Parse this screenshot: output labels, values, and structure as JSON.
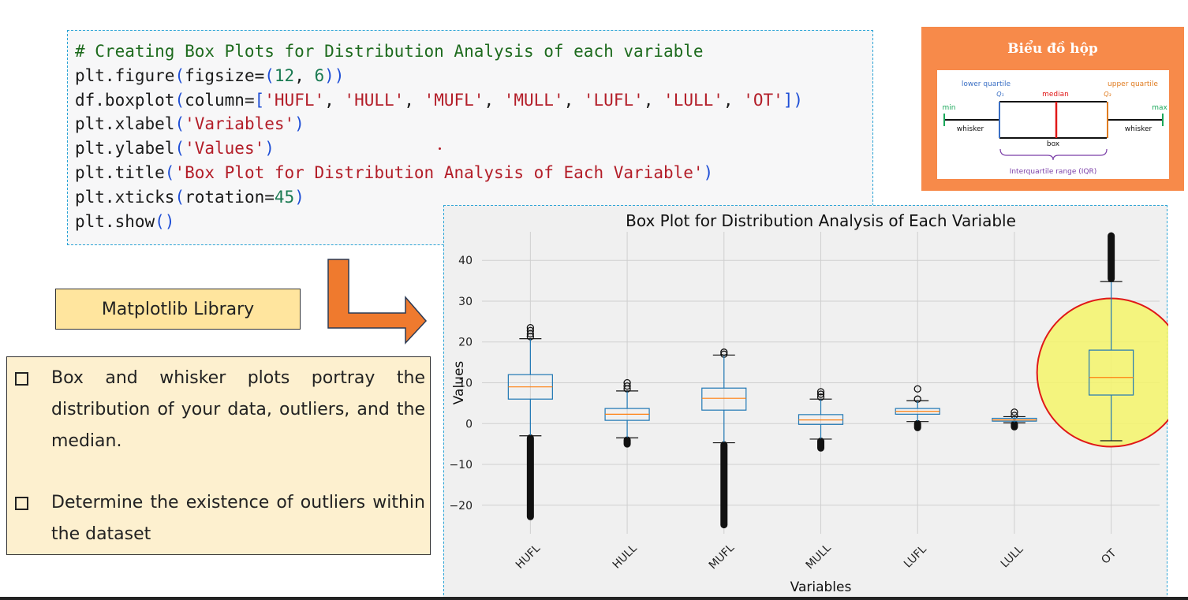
{
  "code": {
    "lines": [
      [
        {
          "t": "# Creating Box Plots for Distribution Analysis of each variable",
          "c": "comment"
        }
      ],
      [
        {
          "t": "plt.figure",
          "c": "plain"
        },
        {
          "t": "(",
          "c": "paren"
        },
        {
          "t": "figsize=",
          "c": "plain"
        },
        {
          "t": "(",
          "c": "paren"
        },
        {
          "t": "12",
          "c": "num"
        },
        {
          "t": ", ",
          "c": "plain"
        },
        {
          "t": "6",
          "c": "num"
        },
        {
          "t": "))",
          "c": "paren"
        }
      ],
      [
        {
          "t": "df.boxplot",
          "c": "plain"
        },
        {
          "t": "(",
          "c": "paren"
        },
        {
          "t": "column=",
          "c": "plain"
        },
        {
          "t": "[",
          "c": "paren"
        },
        {
          "t": "'HUFL'",
          "c": "str"
        },
        {
          "t": ", ",
          "c": "plain"
        },
        {
          "t": "'HULL'",
          "c": "str"
        },
        {
          "t": ", ",
          "c": "plain"
        },
        {
          "t": "'MUFL'",
          "c": "str"
        },
        {
          "t": ", ",
          "c": "plain"
        },
        {
          "t": "'MULL'",
          "c": "str"
        },
        {
          "t": ", ",
          "c": "plain"
        },
        {
          "t": "'LUFL'",
          "c": "str"
        },
        {
          "t": ", ",
          "c": "plain"
        },
        {
          "t": "'LULL'",
          "c": "str"
        },
        {
          "t": ", ",
          "c": "plain"
        },
        {
          "t": "'OT'",
          "c": "str"
        },
        {
          "t": "])",
          "c": "paren"
        }
      ],
      [
        {
          "t": "plt.xlabel",
          "c": "plain"
        },
        {
          "t": "(",
          "c": "paren"
        },
        {
          "t": "'Variables'",
          "c": "str"
        },
        {
          "t": ")",
          "c": "paren"
        }
      ],
      [
        {
          "t": "plt.ylabel",
          "c": "plain"
        },
        {
          "t": "(",
          "c": "paren"
        },
        {
          "t": "'Values'",
          "c": "str"
        },
        {
          "t": ")",
          "c": "paren"
        }
      ],
      [
        {
          "t": "plt.title",
          "c": "plain"
        },
        {
          "t": "(",
          "c": "paren"
        },
        {
          "t": "'Box Plot for Distribution Analysis of Each Variable'",
          "c": "str"
        },
        {
          "t": ")",
          "c": "paren"
        }
      ],
      [
        {
          "t": "plt.xticks",
          "c": "plain"
        },
        {
          "t": "(",
          "c": "paren"
        },
        {
          "t": "rotation=",
          "c": "plain"
        },
        {
          "t": "45",
          "c": "num"
        },
        {
          "t": ")",
          "c": "paren"
        }
      ],
      [
        {
          "t": "plt.show",
          "c": "plain"
        },
        {
          "t": "()",
          "c": "paren"
        }
      ]
    ]
  },
  "reference": {
    "title": "Biểu đồ hộp",
    "lower_quartile": "lower quartile",
    "q1": "Q₁",
    "median": "median",
    "upper_quartile": "upper quartile",
    "q3": "Q₃",
    "min": "min",
    "max": "max",
    "whisker_left": "whisker",
    "whisker_right": "whisker",
    "box": "box",
    "iqr": "Interquartile range (IQR)"
  },
  "library_label": "Matplotlib Library",
  "notes": [
    "Box and whisker plots portray the distribution of your data, outliers, and the median.",
    "Determine the existence of outliers within the dataset"
  ],
  "colors": {
    "orange_panel": "#f78a4a",
    "arrow": "#ef7a2e",
    "box_blue": "#1f77b4",
    "median_orange": "#ff7f0e",
    "highlight_fill": "#f5f56a",
    "highlight_edge": "#e01818"
  },
  "chart_data": {
    "type": "box",
    "title": "Box Plot for Distribution Analysis of Each Variable",
    "xlabel": "Variables",
    "ylabel": "Values",
    "ylim": [
      -27,
      47
    ],
    "yticks": [
      -20,
      -10,
      0,
      10,
      20,
      30,
      40
    ],
    "grid": true,
    "categories": [
      "HUFL",
      "HULL",
      "MUFL",
      "MULL",
      "LUFL",
      "LULL",
      "OT"
    ],
    "series": [
      {
        "category": "HUFL",
        "whisker_low": -3,
        "q1": 6,
        "median": 9,
        "q3": 12,
        "whisker_high": 20.8,
        "outliers_high": [
          21.3,
          22,
          22.8,
          23.5
        ],
        "outliers_low_range": [
          -22.8,
          -3.5
        ]
      },
      {
        "category": "HULL",
        "whisker_low": -3.5,
        "q1": 0.8,
        "median": 2.3,
        "q3": 3.7,
        "whisker_high": 8,
        "outliers_high": [
          8.5,
          9.2,
          10
        ],
        "outliers_low_range": [
          -5,
          -4
        ]
      },
      {
        "category": "MUFL",
        "whisker_low": -4.7,
        "q1": 3.3,
        "median": 6.2,
        "q3": 8.7,
        "whisker_high": 16.8,
        "outliers_high": [
          17,
          17.5
        ],
        "outliers_low_range": [
          -24.8,
          -5.2
        ]
      },
      {
        "category": "MULL",
        "whisker_low": -3.8,
        "q1": -0.2,
        "median": 0.9,
        "q3": 2.2,
        "whisker_high": 6,
        "outliers_high": [
          6.5,
          7.2,
          7.8
        ],
        "outliers_low_range": [
          -6,
          -4.3
        ]
      },
      {
        "category": "LUFL",
        "whisker_low": 0.5,
        "q1": 2.3,
        "median": 3,
        "q3": 3.7,
        "whisker_high": 5.6,
        "outliers_high": [
          6,
          8.5
        ],
        "outliers_low_range": [
          -1,
          0
        ]
      },
      {
        "category": "LULL",
        "whisker_low": 0.2,
        "q1": 0.6,
        "median": 0.9,
        "q3": 1.3,
        "whisker_high": 1.7,
        "outliers_high": [
          2,
          2.8
        ],
        "outliers_low_range": [
          -0.8,
          -0.1
        ]
      },
      {
        "category": "OT",
        "whisker_low": -4.2,
        "q1": 7,
        "median": 11.3,
        "q3": 18,
        "whisker_high": 34.8,
        "outliers_high_range": [
          35.5,
          46
        ],
        "outliers_low_range": null
      }
    ]
  }
}
